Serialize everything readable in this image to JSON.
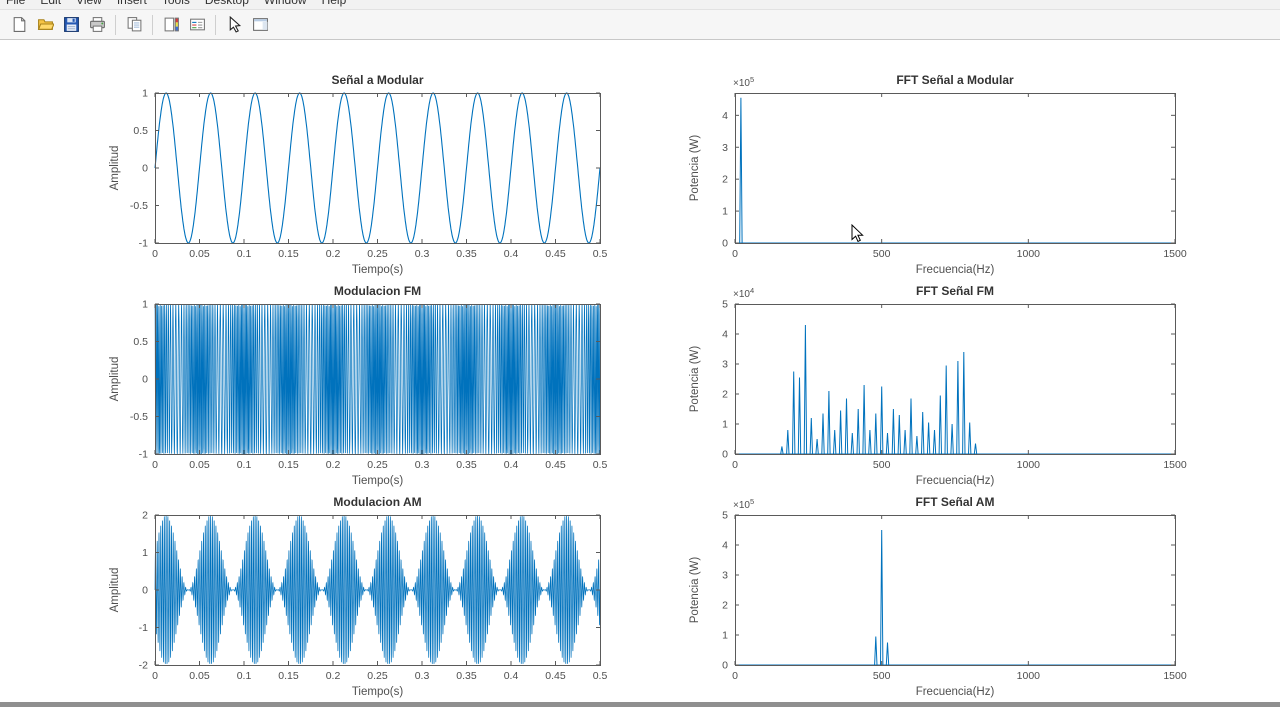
{
  "menu": {
    "items": [
      "File",
      "Edit",
      "View",
      "Insert",
      "Tools",
      "Desktop",
      "Window",
      "Help"
    ]
  },
  "toolbar": {
    "groups": [
      [
        "new-figure",
        "open-file",
        "save-figure",
        "print-figure"
      ],
      [
        "copy-figure"
      ],
      [
        "insert-colorbar",
        "insert-legend"
      ],
      [
        "edit-plot",
        "show-plot-tools"
      ]
    ]
  },
  "colors": {
    "line": "#0072BD",
    "axes": "#5a5a5a",
    "title": "#333333",
    "label": "#4f4f4f"
  },
  "chart_data": [
    {
      "id": "senal-a-modular",
      "type": "line",
      "title": "Señal a Modular",
      "xlabel": "Tiempo(s)",
      "ylabel": "Amplitud",
      "xlim": [
        0,
        0.5
      ],
      "ylim": [
        -1,
        1
      ],
      "xticks": [
        0,
        0.05,
        0.1,
        0.15,
        0.2,
        0.25,
        0.3,
        0.35,
        0.4,
        0.45,
        0.5
      ],
      "yticks": [
        -1,
        -0.5,
        0,
        0.5,
        1
      ],
      "signal": {
        "kind": "sine",
        "freq": 20,
        "amplitude": 1
      },
      "column": "left"
    },
    {
      "id": "fft-senal-a-modular",
      "type": "line",
      "title": "FFT Señal a Modular",
      "xlabel": "Frecuencia(Hz)",
      "ylabel": "Potencia (W)",
      "xlim": [
        0,
        1500
      ],
      "ylim": [
        0,
        4.7
      ],
      "exponent": 5,
      "xticks": [
        0,
        500,
        1000,
        1500
      ],
      "yticks": [
        0,
        1,
        2,
        3,
        4
      ],
      "peaks": [
        [
          20,
          4.55
        ]
      ],
      "column": "right"
    },
    {
      "id": "modulacion-fm",
      "type": "line",
      "title": "Modulacion FM",
      "xlabel": "Tiempo(s)",
      "ylabel": "Amplitud",
      "xlim": [
        0,
        0.5
      ],
      "ylim": [
        -1,
        1
      ],
      "xticks": [
        0,
        0.05,
        0.1,
        0.15,
        0.2,
        0.25,
        0.3,
        0.35,
        0.4,
        0.45,
        0.5
      ],
      "yticks": [
        -1,
        -0.5,
        0,
        0.5,
        1
      ],
      "signal": {
        "kind": "fm",
        "carrier": 500,
        "mod_freq": 20,
        "beta": 10,
        "amplitude": 1
      },
      "column": "left"
    },
    {
      "id": "fft-senal-fm",
      "type": "line",
      "title": "FFT Señal FM",
      "xlabel": "Frecuencia(Hz)",
      "ylabel": "Potencia (W)",
      "xlim": [
        0,
        1500
      ],
      "ylim": [
        0,
        5
      ],
      "exponent": 4,
      "xticks": [
        0,
        500,
        1000,
        1500
      ],
      "yticks": [
        0,
        1,
        2,
        3,
        4,
        5
      ],
      "peaks": [
        [
          160,
          0.25
        ],
        [
          180,
          0.8
        ],
        [
          200,
          2.75
        ],
        [
          220,
          2.55
        ],
        [
          240,
          4.3
        ],
        [
          260,
          1.2
        ],
        [
          280,
          0.5
        ],
        [
          300,
          1.35
        ],
        [
          320,
          2.1
        ],
        [
          340,
          0.8
        ],
        [
          360,
          1.45
        ],
        [
          380,
          1.85
        ],
        [
          400,
          0.7
        ],
        [
          420,
          1.5
        ],
        [
          440,
          2.3
        ],
        [
          460,
          0.8
        ],
        [
          480,
          1.35
        ],
        [
          500,
          2.25
        ],
        [
          520,
          0.7
        ],
        [
          540,
          1.5
        ],
        [
          560,
          1.3
        ],
        [
          580,
          0.8
        ],
        [
          600,
          1.85
        ],
        [
          620,
          0.6
        ],
        [
          640,
          1.4
        ],
        [
          660,
          1.05
        ],
        [
          680,
          0.8
        ],
        [
          700,
          1.95
        ],
        [
          720,
          2.95
        ],
        [
          740,
          1.0
        ],
        [
          760,
          3.1
        ],
        [
          780,
          3.4
        ],
        [
          800,
          1.05
        ],
        [
          820,
          0.35
        ]
      ],
      "column": "right"
    },
    {
      "id": "modulacion-am",
      "type": "line",
      "title": "Modulacion AM",
      "xlabel": "Tiempo(s)",
      "ylabel": "Amplitud",
      "xlim": [
        0,
        0.5
      ],
      "ylim": [
        -2,
        2
      ],
      "xticks": [
        0,
        0.05,
        0.1,
        0.15,
        0.2,
        0.25,
        0.3,
        0.35,
        0.4,
        0.45,
        0.5
      ],
      "yticks": [
        -2,
        -1,
        0,
        1,
        2
      ],
      "signal": {
        "kind": "am",
        "carrier": 500,
        "mod_freq": 20,
        "mod_index": 1,
        "amplitude": 1
      },
      "column": "left"
    },
    {
      "id": "fft-senal-am",
      "type": "line",
      "title": "FFT Señal AM",
      "xlabel": "Frecuencia(Hz)",
      "ylabel": "Potencia (W)",
      "xlim": [
        0,
        1500
      ],
      "ylim": [
        0,
        5
      ],
      "exponent": 5,
      "xticks": [
        0,
        500,
        1000,
        1500
      ],
      "yticks": [
        0,
        1,
        2,
        3,
        4,
        5
      ],
      "peaks": [
        [
          480,
          0.95
        ],
        [
          500,
          4.5
        ],
        [
          520,
          0.75
        ]
      ],
      "column": "right"
    }
  ]
}
